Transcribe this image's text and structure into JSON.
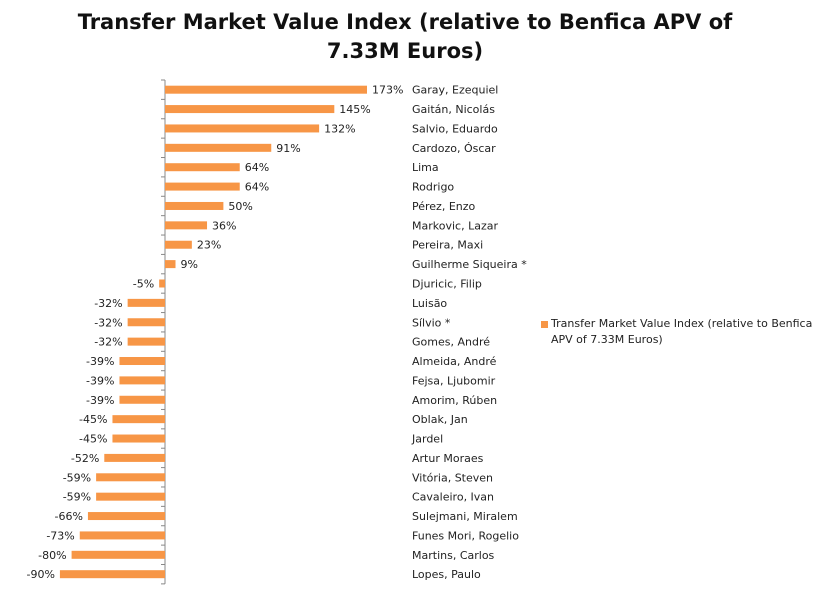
{
  "chart_data": {
    "type": "bar",
    "orientation": "horizontal",
    "title": "Transfer Market Value Index (relative to Benfica APV of 7.33M Euros)",
    "xlabel": "",
    "ylabel": "",
    "xlim": [
      -90,
      173
    ],
    "grid": false,
    "legend_position": "right",
    "value_suffix": "%",
    "categories": [
      "Garay, Ezequiel",
      "Gaitán, Nicolás",
      "Salvio, Eduardo",
      "Cardozo, Óscar",
      "Lima",
      "Rodrigo",
      "Pérez, Enzo",
      "Markovic, Lazar",
      "Pereira, Maxi",
      "Guilherme Siqueira *",
      "Djuricic, Filip",
      "Luisão",
      "Sílvio *",
      "Gomes, André",
      "Almeida, André",
      "Fejsa, Ljubomir",
      "Amorim, Rúben",
      "Oblak, Jan",
      "Jardel",
      "Artur Moraes",
      "Vitória, Steven",
      "Cavaleiro, Ivan",
      "Sulejmani, Miralem",
      "Funes Mori, Rogelio",
      "Martins, Carlos",
      "Lopes, Paulo"
    ],
    "series": [
      {
        "name": "Transfer Market Value Index (relative to Benfica APV of 7.33M Euros)",
        "color": "#F79646",
        "values": [
          173,
          145,
          132,
          91,
          64,
          64,
          50,
          36,
          23,
          9,
          -5,
          -32,
          -32,
          -32,
          -39,
          -39,
          -39,
          -45,
          -45,
          -52,
          -59,
          -59,
          -66,
          -73,
          -80,
          -90
        ]
      }
    ]
  },
  "colors": {
    "bar": "#F79646",
    "axis": "#888888"
  }
}
